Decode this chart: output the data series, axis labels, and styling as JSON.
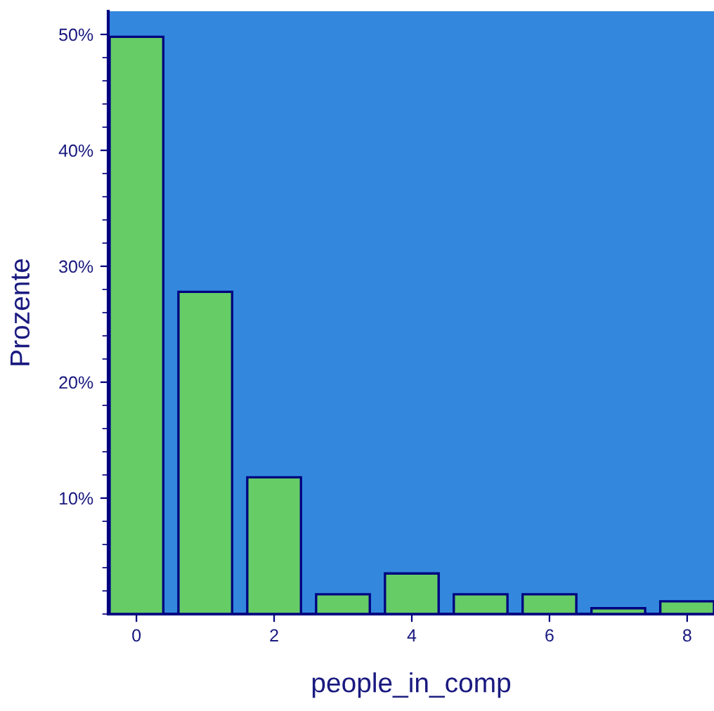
{
  "chart_data": {
    "type": "bar",
    "xlabel": "people_in_comp",
    "ylabel": "Prozente",
    "x": [
      0,
      1,
      2,
      3,
      4,
      5,
      6,
      7,
      8
    ],
    "values": [
      49.8,
      27.8,
      11.8,
      1.7,
      3.5,
      1.7,
      1.7,
      0.5,
      1.1
    ],
    "color": "#66cc66",
    "xlim": [
      -0.41,
      8.39
    ],
    "xticks": [
      0,
      2,
      4,
      6,
      8
    ],
    "ylim": [
      0,
      52
    ],
    "yticks": [
      {
        "value": 10,
        "label": "10%"
      },
      {
        "value": 20,
        "label": "20%"
      },
      {
        "value": 30,
        "label": "30%"
      },
      {
        "value": 40,
        "label": "40%"
      },
      {
        "value": 50,
        "label": "50%"
      }
    ],
    "grid": false
  }
}
